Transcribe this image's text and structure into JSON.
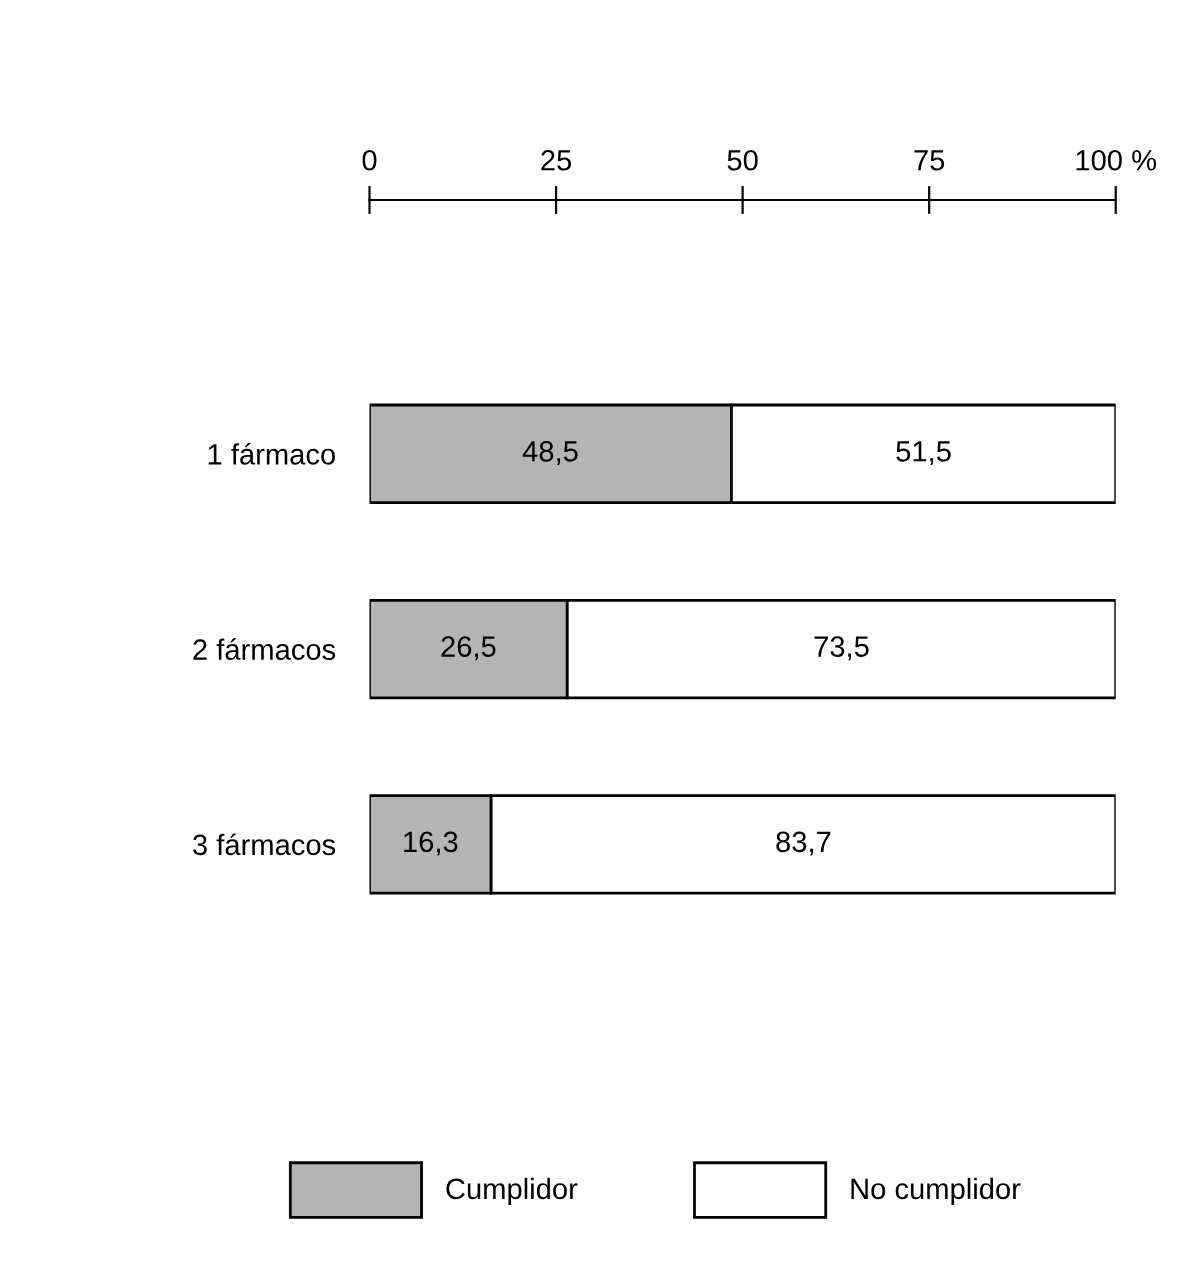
{
  "chart_data": {
    "type": "bar",
    "orientation": "horizontal",
    "stacked": true,
    "categories": [
      "1 fármaco",
      "2 fármacos",
      "3 fármacos"
    ],
    "series": [
      {
        "name": "Cumplidor",
        "color": "#b4b4b4",
        "values": [
          48.5,
          26.5,
          16.3
        ],
        "value_labels": [
          "48,5",
          "26,5",
          "16,3"
        ]
      },
      {
        "name": "No cumplidor",
        "color": "#ffffff",
        "values": [
          51.5,
          73.5,
          83.7
        ],
        "value_labels": [
          "51,5",
          "73,5",
          "83,7"
        ]
      }
    ],
    "xlim": [
      0,
      100
    ],
    "xticks": [
      0,
      25,
      50,
      75,
      {
        "value": 100,
        "label": "100 %"
      }
    ],
    "legend": "bottom",
    "grid": false
  }
}
